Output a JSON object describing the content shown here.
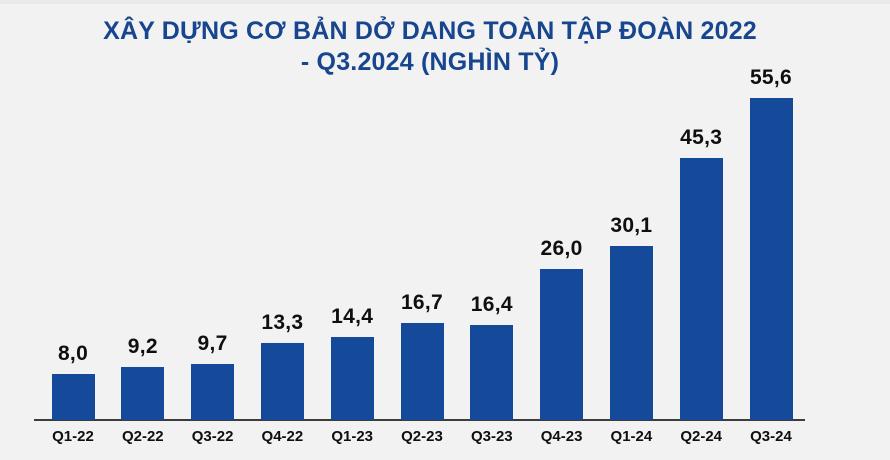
{
  "page": {
    "background_color": "#f2f2f3",
    "top_strip_color": "#e9e9ea"
  },
  "chart_data": {
    "type": "bar",
    "title": "XÂY DỰNG CƠ BẢN DỞ DANG TOÀN TẬP ĐOÀN 2022 - Q3.2024 (NGHÌN TỶ)",
    "title_lines": [
      "XÂY DỰNG CƠ BẢN DỞ DANG TOÀN TẬP ĐOÀN 2022",
      "- Q3.2024 (NGHÌN TỶ)"
    ],
    "categories": [
      "Q1-22",
      "Q2-22",
      "Q3-22",
      "Q4-22",
      "Q1-23",
      "Q2-23",
      "Q3-23",
      "Q4-23",
      "Q1-24",
      "Q2-24",
      "Q3-24"
    ],
    "values": [
      8.0,
      9.2,
      9.7,
      13.3,
      14.4,
      16.7,
      16.4,
      26.0,
      30.1,
      45.3,
      55.6
    ],
    "value_labels": [
      "8,0",
      "9,2",
      "9,7",
      "13,3",
      "14,4",
      "16,7",
      "16,4",
      "26,0",
      "30,1",
      "45,3",
      "55,6"
    ],
    "xlabel": "",
    "ylabel": "",
    "ylim": [
      0,
      60
    ],
    "grid": false,
    "legend": null,
    "bar_color": "#154a9b",
    "title_color": "#17458e",
    "label_color": "#0f0f10",
    "axis_color": "#3c3c3c"
  }
}
